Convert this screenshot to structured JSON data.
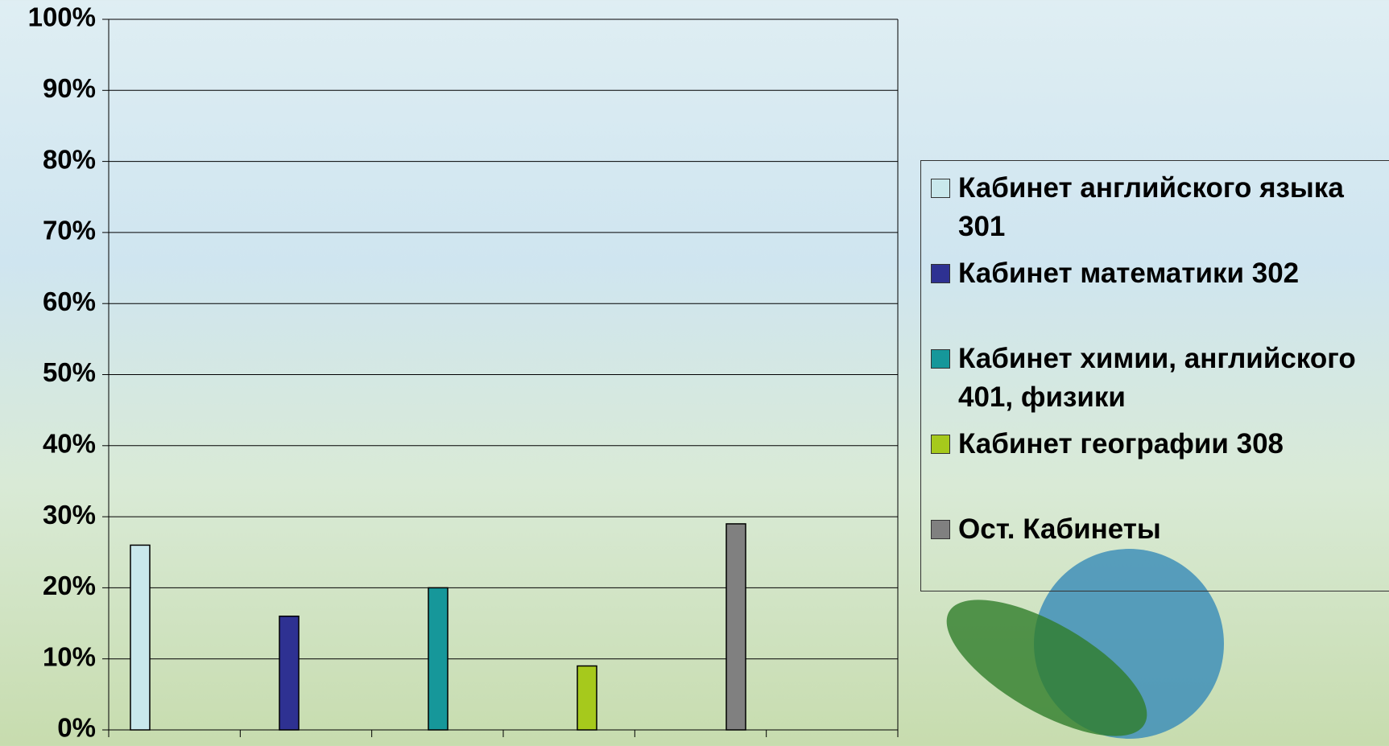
{
  "chart_data": {
    "type": "bar",
    "series": [
      {
        "name": "Кабинет английского языка 301",
        "color": "#c9e8ec",
        "values": [
          26
        ]
      },
      {
        "name": "Кабинет математики 302",
        "color": "#2e3192",
        "values": [
          16
        ]
      },
      {
        "name": "Кабинет химии, английского 401, физики",
        "color": "#16979a",
        "values": [
          20
        ]
      },
      {
        "name": "Кабинет географии 308",
        "color": "#a6c91c",
        "values": [
          9
        ]
      },
      {
        "name": "Ост. Кабинеты",
        "color": "#808080",
        "values": [
          29
        ]
      }
    ],
    "ylim": [
      0,
      100
    ],
    "yticks": [
      {
        "value": 0,
        "label": "0%"
      },
      {
        "value": 10,
        "label": "10%"
      },
      {
        "value": 20,
        "label": "20%"
      },
      {
        "value": 30,
        "label": "30%"
      },
      {
        "value": 40,
        "label": "40%"
      },
      {
        "value": 50,
        "label": "50%"
      },
      {
        "value": 60,
        "label": "60%"
      },
      {
        "value": 70,
        "label": "70%"
      },
      {
        "value": 80,
        "label": "80%"
      },
      {
        "value": 90,
        "label": "90%"
      },
      {
        "value": 100,
        "label": "100%"
      }
    ],
    "grid": true,
    "legend": "right"
  }
}
